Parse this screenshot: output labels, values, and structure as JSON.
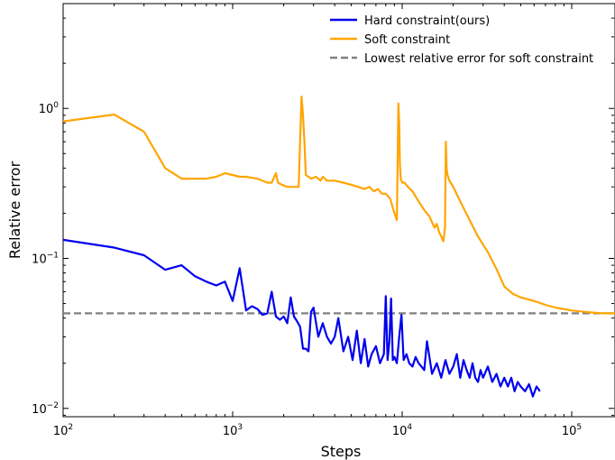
{
  "chart_data": {
    "type": "line",
    "xlabel": "Steps",
    "ylabel": "Relative error",
    "xscale": "log",
    "yscale": "log",
    "xlim": [
      100,
      180000
    ],
    "ylim": [
      0.0088,
      5.0
    ],
    "x_tick_labels": [
      {
        "value": 100,
        "base": "10",
        "exp": "2"
      },
      {
        "value": 1000,
        "base": "10",
        "exp": "3"
      },
      {
        "value": 10000,
        "base": "10",
        "exp": "4"
      },
      {
        "value": 100000,
        "base": "10",
        "exp": "5"
      }
    ],
    "y_tick_labels": [
      {
        "value": 0.01,
        "base": "10",
        "exp": "−2"
      },
      {
        "value": 0.1,
        "base": "10",
        "exp": "−1"
      },
      {
        "value": 1,
        "base": "10",
        "exp": "0"
      }
    ],
    "legend_position": "top-right",
    "series": [
      {
        "name": "Hard constraint(ours)",
        "color": "#0000ee",
        "style": "solid",
        "x": [
          100,
          200,
          300,
          400,
          500,
          600,
          700,
          800,
          900,
          1000,
          1100,
          1200,
          1300,
          1400,
          1500,
          1600,
          1700,
          1800,
          1900,
          2000,
          2100,
          2200,
          2300,
          2400,
          2500,
          2600,
          2700,
          2800,
          2900,
          3000,
          3200,
          3400,
          3600,
          3800,
          4000,
          4200,
          4500,
          4800,
          5100,
          5400,
          5700,
          6000,
          6300,
          6600,
          7000,
          7400,
          7800,
          8000,
          8200,
          8400,
          8600,
          8800,
          9000,
          9300,
          9600,
          9900,
          10200,
          10600,
          11000,
          11500,
          12000,
          12500,
          13000,
          13500,
          14000,
          15000,
          16000,
          17000,
          18000,
          19000,
          20000,
          21000,
          22000,
          23000,
          24000,
          25000,
          26000,
          27000,
          28000,
          29000,
          30000,
          32000,
          34000,
          36000,
          38000,
          40000,
          42000,
          44000,
          46000,
          48000,
          50000,
          53000,
          56000,
          59000,
          62000,
          65000
        ],
        "y": [
          0.133,
          0.118,
          0.105,
          0.084,
          0.09,
          0.076,
          0.07,
          0.066,
          0.07,
          0.052,
          0.086,
          0.045,
          0.048,
          0.046,
          0.042,
          0.043,
          0.06,
          0.041,
          0.039,
          0.041,
          0.037,
          0.055,
          0.041,
          0.038,
          0.035,
          0.025,
          0.025,
          0.024,
          0.044,
          0.047,
          0.03,
          0.037,
          0.03,
          0.027,
          0.03,
          0.04,
          0.024,
          0.03,
          0.021,
          0.033,
          0.02,
          0.029,
          0.019,
          0.023,
          0.026,
          0.02,
          0.023,
          0.056,
          0.021,
          0.028,
          0.054,
          0.021,
          0.022,
          0.02,
          0.03,
          0.042,
          0.021,
          0.023,
          0.02,
          0.019,
          0.022,
          0.02,
          0.019,
          0.018,
          0.028,
          0.017,
          0.02,
          0.016,
          0.021,
          0.017,
          0.019,
          0.023,
          0.016,
          0.021,
          0.018,
          0.016,
          0.02,
          0.016,
          0.015,
          0.018,
          0.016,
          0.019,
          0.015,
          0.017,
          0.014,
          0.016,
          0.014,
          0.016,
          0.013,
          0.015,
          0.014,
          0.013,
          0.0145,
          0.012,
          0.014,
          0.013
        ]
      },
      {
        "name": "Soft constraint",
        "color": "#ffa500",
        "style": "solid",
        "x": [
          100,
          200,
          300,
          400,
          500,
          600,
          700,
          800,
          900,
          1000,
          1100,
          1200,
          1400,
          1600,
          1700,
          1800,
          1850,
          1950,
          2100,
          2300,
          2450,
          2550,
          2600,
          2650,
          2700,
          2800,
          2900,
          3100,
          3300,
          3400,
          3600,
          4000,
          4500,
          5000,
          5500,
          6000,
          6400,
          6800,
          7200,
          7600,
          8000,
          8500,
          9000,
          9300,
          9500,
          9600,
          9700,
          9800,
          9900,
          10000,
          10300,
          10800,
          11500,
          12500,
          13500,
          14500,
          15500,
          16000,
          16500,
          17000,
          17500,
          17900,
          18100,
          18300,
          18500,
          19000,
          20000,
          22000,
          25000,
          28000,
          32000,
          36000,
          40000,
          45000,
          50000,
          60000,
          70000,
          80000,
          100000,
          120000,
          150000,
          180000
        ],
        "y": [
          0.82,
          0.91,
          0.7,
          0.4,
          0.34,
          0.34,
          0.34,
          0.35,
          0.37,
          0.36,
          0.35,
          0.35,
          0.34,
          0.32,
          0.32,
          0.37,
          0.32,
          0.31,
          0.3,
          0.3,
          0.3,
          1.2,
          0.9,
          0.6,
          0.36,
          0.35,
          0.34,
          0.35,
          0.33,
          0.35,
          0.33,
          0.33,
          0.32,
          0.31,
          0.3,
          0.29,
          0.3,
          0.28,
          0.29,
          0.27,
          0.27,
          0.25,
          0.2,
          0.18,
          1.08,
          0.8,
          0.42,
          0.34,
          0.33,
          0.32,
          0.32,
          0.3,
          0.28,
          0.24,
          0.21,
          0.19,
          0.16,
          0.17,
          0.15,
          0.14,
          0.13,
          0.16,
          0.6,
          0.4,
          0.36,
          0.33,
          0.3,
          0.24,
          0.18,
          0.14,
          0.11,
          0.085,
          0.065,
          0.058,
          0.055,
          0.052,
          0.049,
          0.047,
          0.045,
          0.044,
          0.043,
          0.043
        ]
      },
      {
        "name": "Lowest relative error for soft constraint",
        "color": "#808080",
        "style": "dashed",
        "x": [
          100,
          180000
        ],
        "y": [
          0.043,
          0.043
        ]
      }
    ]
  }
}
